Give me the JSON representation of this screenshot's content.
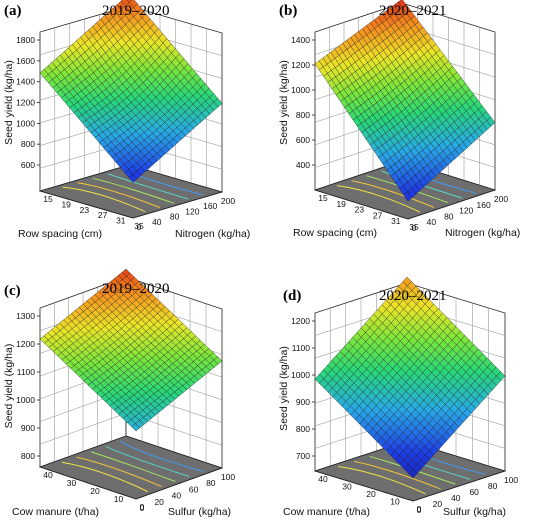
{
  "panels": [
    {
      "label": "(a)",
      "title": "2019–2020",
      "ylabel": "Seed yield (kg/ha)",
      "xlabel": "Row spacing (cm)",
      "zlabel": "Nitrogen (kg/ha)",
      "yticks": [
        "1800",
        "1600",
        "1400",
        "1200",
        "1000",
        "800",
        "600"
      ],
      "xticks": [
        "15",
        "19",
        "23",
        "27",
        "31",
        "35"
      ],
      "zticks": [
        "0",
        "40",
        "80",
        "120",
        "160",
        "200"
      ]
    },
    {
      "label": "(b)",
      "title": "2020–2021",
      "ylabel": "Seed yield (kg/ha)",
      "xlabel": "Row spacing (cm)",
      "zlabel": "Nitrogen (kg/ha)",
      "yticks": [
        "1400",
        "1200",
        "1000",
        "800",
        "600",
        "400"
      ],
      "xticks": [
        "15",
        "19",
        "23",
        "27",
        "31",
        "35"
      ],
      "zticks": [
        "0",
        "40",
        "80",
        "120",
        "160",
        "200"
      ]
    },
    {
      "label": "(c)",
      "title": "2019–2020",
      "ylabel": "Seed yield (kg/ha)",
      "xlabel": "Cow manure (t/ha)",
      "zlabel": "Sulfur (kg/ha)",
      "yticks": [
        "1300",
        "1200",
        "1100",
        "1000",
        "900",
        "800"
      ],
      "xticks": [
        "40",
        "30",
        "20",
        "10",
        "0"
      ],
      "zticks": [
        "0",
        "20",
        "40",
        "60",
        "80",
        "100"
      ]
    },
    {
      "label": "(d)",
      "title": "2020–2021",
      "ylabel": "Seed yield (kg/ha)",
      "xlabel": "Cow manure (t/ha)",
      "zlabel": "Sulfur (kg/ha)",
      "yticks": [
        "1200",
        "1100",
        "1000",
        "900",
        "800",
        "700"
      ],
      "xticks": [
        "40",
        "30",
        "20",
        "10",
        "0"
      ],
      "zticks": [
        "0",
        "20",
        "40",
        "60",
        "80",
        "100"
      ]
    }
  ],
  "chart_data": [
    {
      "type": "surface",
      "title": "2019–2020",
      "x_variable": "Row spacing (cm)",
      "y_variable": "Nitrogen (kg/ha)",
      "z_variable": "Seed yield (kg/ha)",
      "x_range": [
        15,
        35
      ],
      "y_range": [
        0,
        200
      ],
      "z_range": [
        400,
        1800
      ],
      "corners": {
        "x15_y0": 1300,
        "x35_y0": 600,
        "x15_y200": 1750,
        "x35_y200": 1050
      },
      "center_min": 450
    },
    {
      "type": "surface",
      "title": "2020–2021",
      "x_variable": "Row spacing (cm)",
      "y_variable": "Nitrogen (kg/ha)",
      "z_variable": "Seed yield (kg/ha)",
      "x_range": [
        15,
        35
      ],
      "y_range": [
        0,
        200
      ],
      "z_range": [
        400,
        1400
      ],
      "corners": {
        "x15_y0": 1150,
        "x35_y0": 450,
        "x15_y200": 1380,
        "x35_y200": 770
      },
      "center_min": 400
    },
    {
      "type": "surface",
      "title": "2019–2020",
      "x_variable": "Cow manure (t/ha)",
      "y_variable": "Sulfur (kg/ha)",
      "z_variable": "Seed yield (kg/ha)",
      "x_range": [
        0,
        40
      ],
      "y_range": [
        0,
        100
      ],
      "z_range": [
        750,
        1300
      ],
      "corners": {
        "x40_y0": 1150,
        "x0_y0": 950,
        "x40_y100": 1280,
        "x0_y100": 1080
      },
      "center_min": 930
    },
    {
      "type": "surface",
      "title": "2020–2021",
      "x_variable": "Cow manure (t/ha)",
      "y_variable": "Sulfur (kg/ha)",
      "z_variable": "Seed yield (kg/ha)",
      "x_range": [
        0,
        40
      ],
      "y_range": [
        0,
        100
      ],
      "z_range": [
        650,
        1200
      ],
      "corners": {
        "x40_y0": 930,
        "x0_y0": 700,
        "x40_y100": 1170,
        "x0_y100": 940
      },
      "center_min": 700
    }
  ]
}
